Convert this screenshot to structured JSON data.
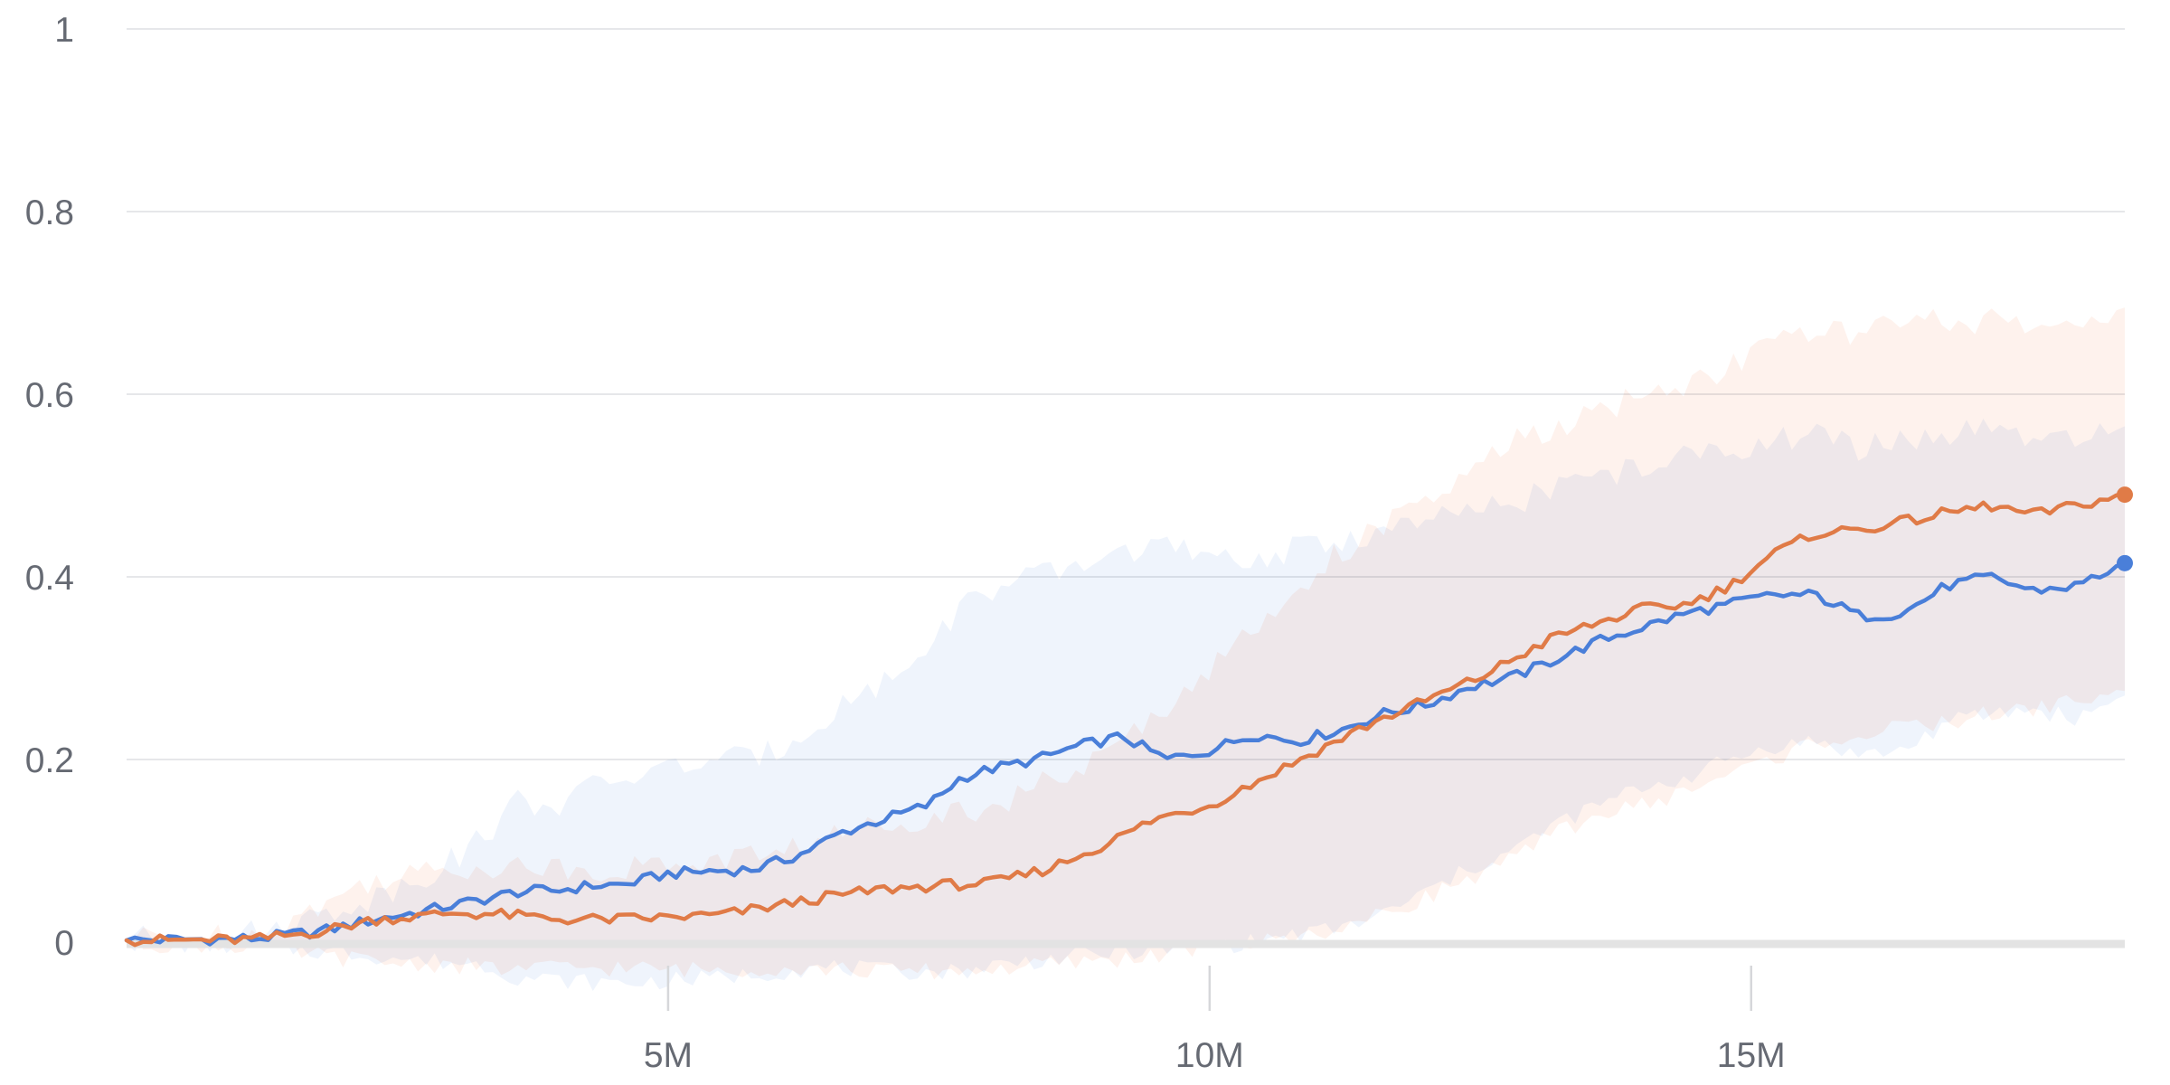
{
  "chart_data": {
    "type": "line",
    "title": "",
    "xlabel": "",
    "ylabel": "",
    "xlim": [
      0,
      18450000
    ],
    "ylim": [
      -0.05,
      1
    ],
    "grid": true,
    "legend": "none",
    "y_ticks": [
      {
        "value": 1,
        "label": "1"
      },
      {
        "value": 0.8,
        "label": "0.8"
      },
      {
        "value": 0.6,
        "label": "0.6"
      },
      {
        "value": 0.4,
        "label": "0.4"
      },
      {
        "value": 0.2,
        "label": "0.2"
      },
      {
        "value": 0,
        "label": "0"
      }
    ],
    "x_ticks": [
      {
        "value": 5000000,
        "label": "5M"
      },
      {
        "value": 10000000,
        "label": "10M"
      },
      {
        "value": 15000000,
        "label": "15M"
      }
    ],
    "series": [
      {
        "color": "#4a7fd9",
        "band_color": "#e9f0fb",
        "points": [
          [
            0,
            0.002,
            -0.002,
            0.004
          ],
          [
            600000,
            0.003,
            -0.003,
            0.006
          ],
          [
            1200000,
            0.004,
            -0.005,
            0.01
          ],
          [
            1800000,
            0.012,
            -0.01,
            0.03
          ],
          [
            2300000,
            0.025,
            -0.015,
            0.05
          ],
          [
            2700000,
            0.033,
            -0.02,
            0.07
          ],
          [
            3000000,
            0.04,
            -0.022,
            0.09
          ],
          [
            3300000,
            0.047,
            -0.025,
            0.115
          ],
          [
            3600000,
            0.055,
            -0.038,
            0.155
          ],
          [
            4000000,
            0.057,
            -0.042,
            0.15
          ],
          [
            4300000,
            0.062,
            -0.044,
            0.17
          ],
          [
            4600000,
            0.063,
            -0.045,
            0.18
          ],
          [
            5000000,
            0.075,
            -0.042,
            0.19
          ],
          [
            5400000,
            0.078,
            -0.04,
            0.2
          ],
          [
            5800000,
            0.08,
            -0.035,
            0.2
          ],
          [
            6200000,
            0.095,
            -0.03,
            0.225
          ],
          [
            6600000,
            0.12,
            -0.028,
            0.26
          ],
          [
            7000000,
            0.135,
            -0.032,
            0.285
          ],
          [
            7400000,
            0.15,
            -0.032,
            0.32
          ],
          [
            7700000,
            0.18,
            -0.032,
            0.37
          ],
          [
            8000000,
            0.19,
            -0.025,
            0.385
          ],
          [
            8400000,
            0.2,
            -0.02,
            0.4
          ],
          [
            8800000,
            0.215,
            -0.015,
            0.41
          ],
          [
            9200000,
            0.225,
            -0.01,
            0.43
          ],
          [
            9600000,
            0.2,
            -0.008,
            0.435
          ],
          [
            10000000,
            0.21,
            -0.005,
            0.415
          ],
          [
            10400000,
            0.228,
            0.0,
            0.42
          ],
          [
            10800000,
            0.22,
            0.008,
            0.43
          ],
          [
            11200000,
            0.232,
            0.015,
            0.44
          ],
          [
            11600000,
            0.25,
            0.03,
            0.45
          ],
          [
            12000000,
            0.26,
            0.055,
            0.46
          ],
          [
            12400000,
            0.28,
            0.08,
            0.47
          ],
          [
            12800000,
            0.29,
            0.1,
            0.48
          ],
          [
            13200000,
            0.31,
            0.13,
            0.5
          ],
          [
            13600000,
            0.33,
            0.15,
            0.51
          ],
          [
            14000000,
            0.345,
            0.17,
            0.52
          ],
          [
            14400000,
            0.36,
            0.18,
            0.53
          ],
          [
            14800000,
            0.37,
            0.2,
            0.54
          ],
          [
            15200000,
            0.38,
            0.215,
            0.55
          ],
          [
            15600000,
            0.38,
            0.22,
            0.555
          ],
          [
            16000000,
            0.357,
            0.205,
            0.54
          ],
          [
            16400000,
            0.36,
            0.21,
            0.55
          ],
          [
            16800000,
            0.39,
            0.24,
            0.555
          ],
          [
            17200000,
            0.4,
            0.25,
            0.56
          ],
          [
            17600000,
            0.385,
            0.255,
            0.55
          ],
          [
            18000000,
            0.39,
            0.245,
            0.545
          ],
          [
            18450000,
            0.415,
            0.27,
            0.565
          ]
        ]
      },
      {
        "color": "#e07b47",
        "band_color": "#fdeee7",
        "points": [
          [
            0,
            0.002,
            -0.002,
            0.004
          ],
          [
            600000,
            0.002,
            -0.003,
            0.005
          ],
          [
            1200000,
            0.003,
            -0.005,
            0.008
          ],
          [
            1800000,
            0.012,
            -0.015,
            0.04
          ],
          [
            2300000,
            0.025,
            -0.022,
            0.07
          ],
          [
            2700000,
            0.028,
            -0.024,
            0.075
          ],
          [
            3000000,
            0.032,
            -0.025,
            0.08
          ],
          [
            3500000,
            0.03,
            -0.03,
            0.085
          ],
          [
            4000000,
            0.025,
            -0.028,
            0.08
          ],
          [
            4500000,
            0.025,
            -0.028,
            0.08
          ],
          [
            5000000,
            0.027,
            -0.03,
            0.085
          ],
          [
            5500000,
            0.03,
            -0.03,
            0.09
          ],
          [
            6000000,
            0.04,
            -0.028,
            0.1
          ],
          [
            6500000,
            0.05,
            -0.03,
            0.115
          ],
          [
            7000000,
            0.058,
            -0.032,
            0.13
          ],
          [
            7500000,
            0.062,
            -0.032,
            0.14
          ],
          [
            8000000,
            0.065,
            -0.03,
            0.15
          ],
          [
            8500000,
            0.08,
            -0.025,
            0.175
          ],
          [
            9000000,
            0.105,
            -0.02,
            0.2
          ],
          [
            9500000,
            0.135,
            -0.015,
            0.25
          ],
          [
            10000000,
            0.15,
            -0.005,
            0.3
          ],
          [
            10500000,
            0.18,
            0.0,
            0.35
          ],
          [
            11000000,
            0.21,
            0.01,
            0.41
          ],
          [
            11500000,
            0.24,
            0.025,
            0.45
          ],
          [
            12000000,
            0.265,
            0.05,
            0.48
          ],
          [
            12500000,
            0.29,
            0.075,
            0.52
          ],
          [
            12800000,
            0.31,
            0.09,
            0.55
          ],
          [
            13200000,
            0.335,
            0.12,
            0.56
          ],
          [
            13600000,
            0.35,
            0.14,
            0.58
          ],
          [
            14000000,
            0.365,
            0.15,
            0.6
          ],
          [
            14400000,
            0.37,
            0.165,
            0.61
          ],
          [
            14800000,
            0.39,
            0.185,
            0.63
          ],
          [
            15200000,
            0.425,
            0.2,
            0.66
          ],
          [
            15600000,
            0.448,
            0.22,
            0.665
          ],
          [
            16000000,
            0.452,
            0.225,
            0.67
          ],
          [
            16400000,
            0.46,
            0.235,
            0.675
          ],
          [
            16800000,
            0.47,
            0.24,
            0.68
          ],
          [
            17200000,
            0.478,
            0.25,
            0.68
          ],
          [
            17600000,
            0.468,
            0.255,
            0.67
          ],
          [
            18000000,
            0.478,
            0.265,
            0.68
          ],
          [
            18450000,
            0.49,
            0.275,
            0.695
          ]
        ]
      }
    ]
  }
}
